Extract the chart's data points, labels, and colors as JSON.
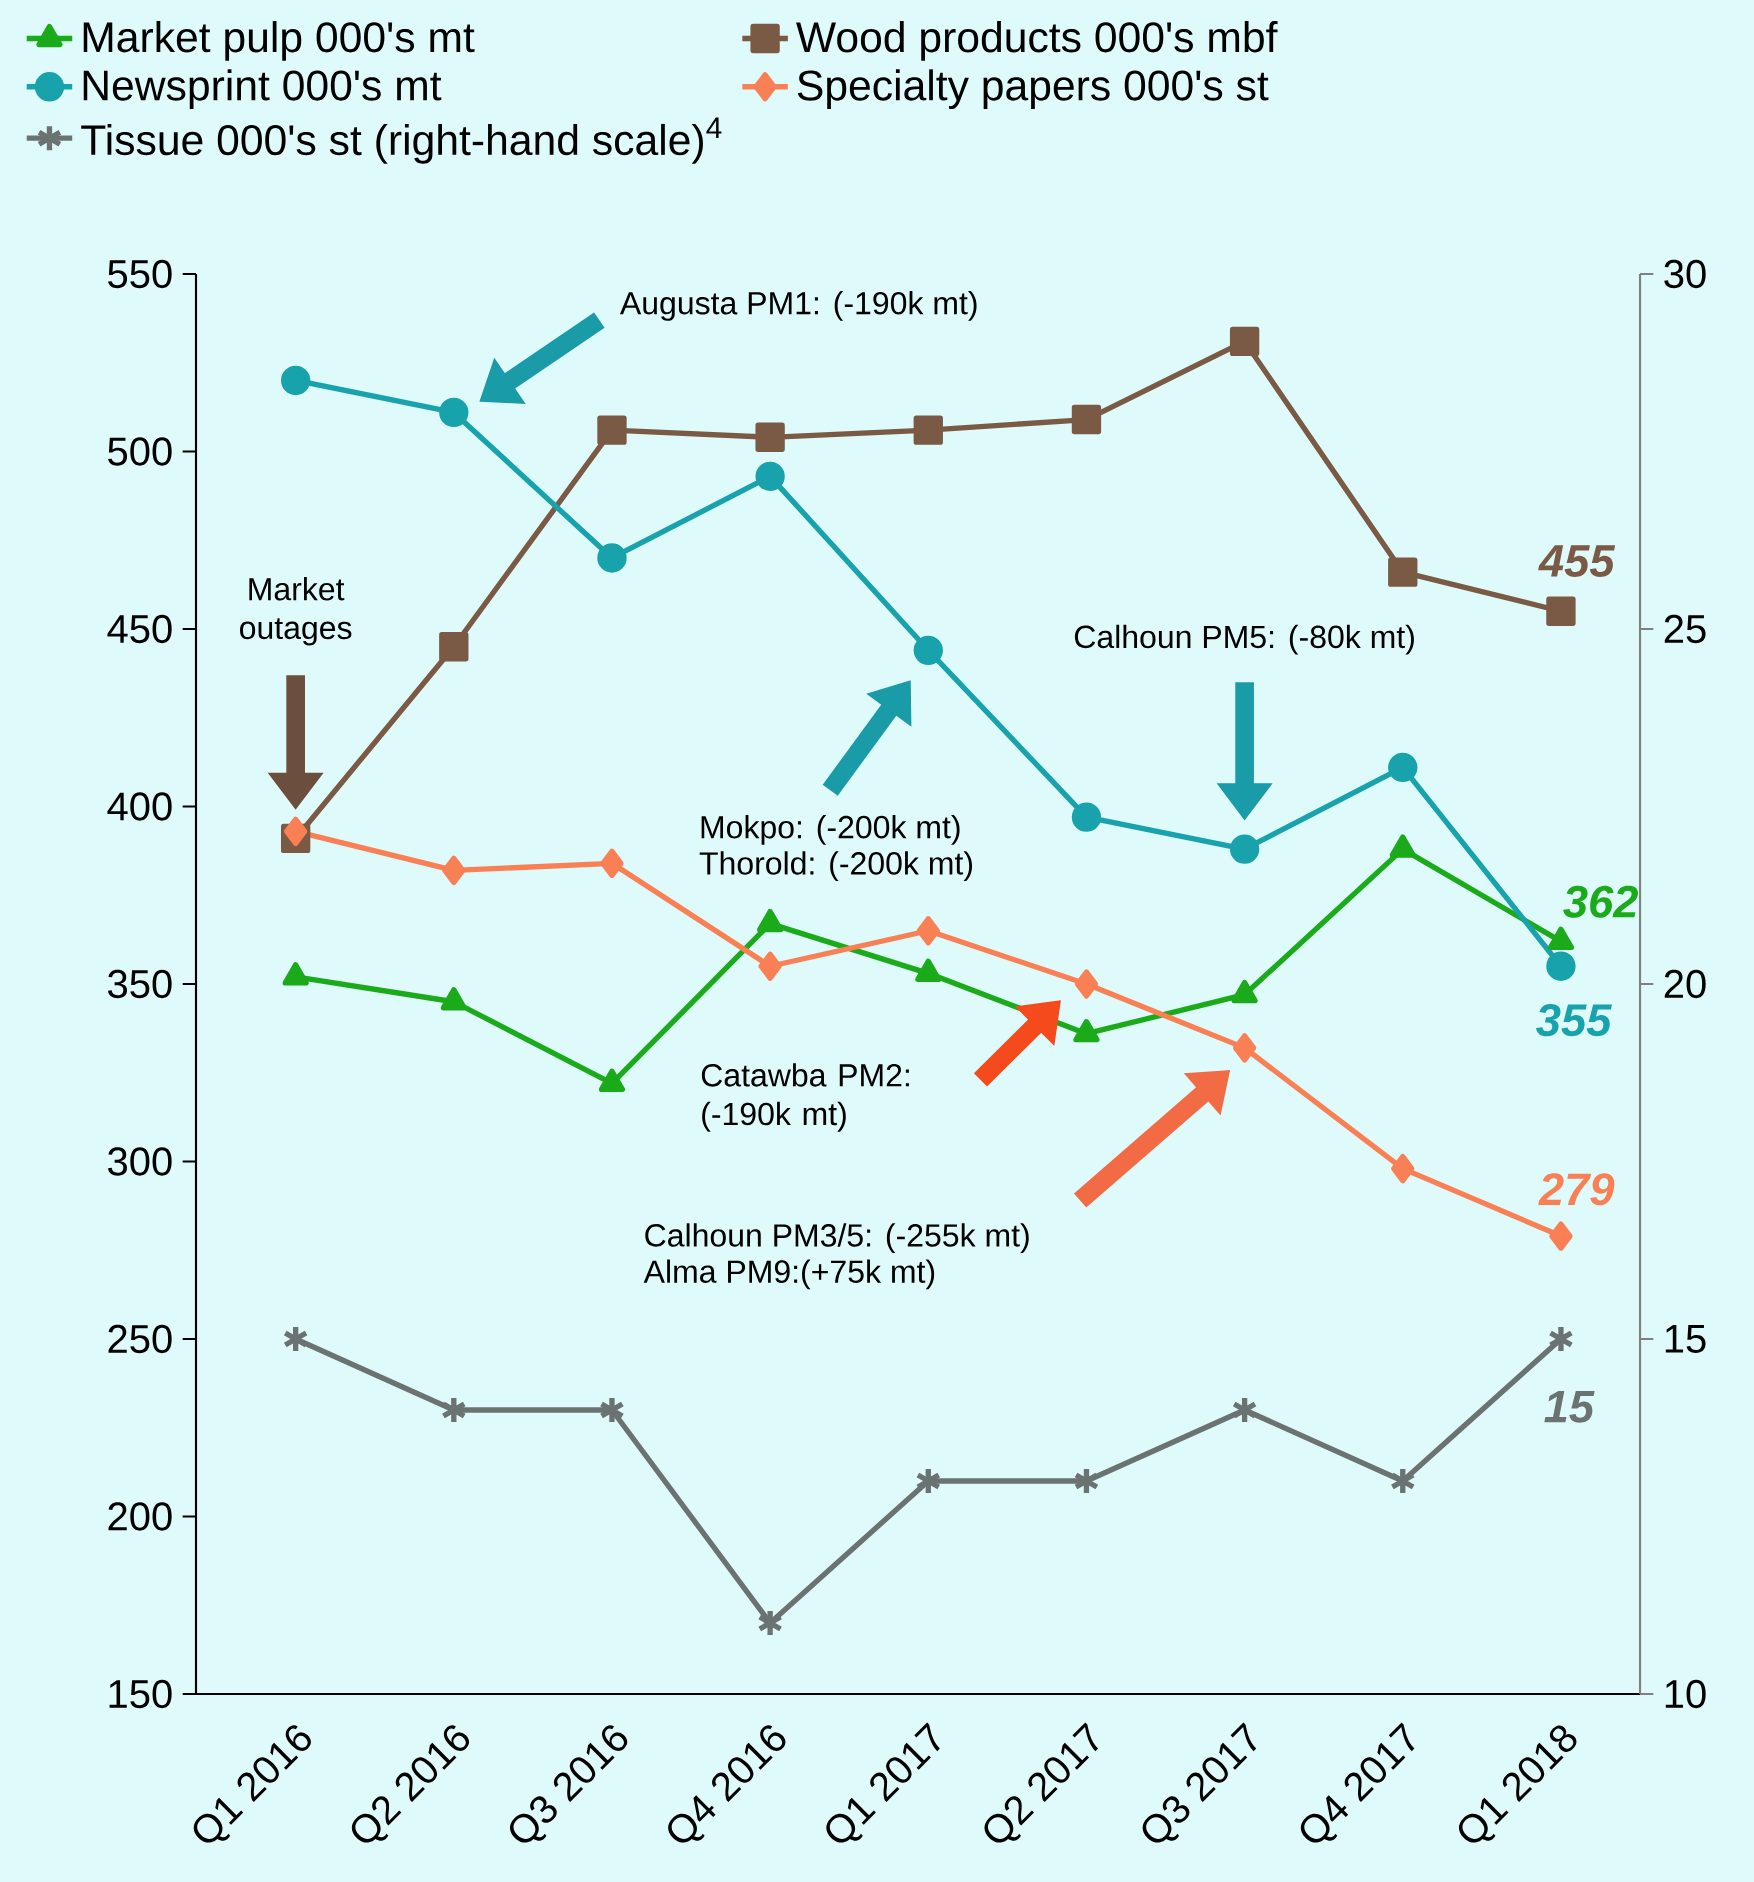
{
  "chart_data": {
    "type": "line",
    "categories": [
      "Q1 2016",
      "Q2 2016",
      "Q3 2016",
      "Q4 2016",
      "Q1 2017",
      "Q2 2017",
      "Q3 2017",
      "Q4 2017",
      "Q1 2018"
    ],
    "series": [
      {
        "name": "Market pulp 000's mt",
        "color": "#1aaa1a",
        "marker": "triangle",
        "values": [
          352,
          345,
          322,
          367,
          353,
          336,
          347,
          388,
          362
        ],
        "value_labels": [
          null,
          null,
          null,
          null,
          null,
          null,
          null,
          null,
          "362"
        ]
      },
      {
        "name": "Wood products 000's mbf",
        "color": "#7a5a44",
        "marker": "square",
        "values": [
          391,
          445,
          506,
          504,
          506,
          509,
          531,
          466,
          455
        ],
        "value_labels": [
          null,
          null,
          null,
          null,
          null,
          null,
          null,
          null,
          "455"
        ]
      },
      {
        "name": "Newsprint 000's mt",
        "color": "#18a2ac",
        "marker": "circle",
        "values": [
          520,
          511,
          470,
          493,
          444,
          397,
          388,
          411,
          355
        ],
        "value_labels": [
          null,
          null,
          null,
          null,
          null,
          null,
          null,
          null,
          "355"
        ]
      },
      {
        "name": "Specialty papers 000's st",
        "color": "#f98055",
        "marker": "diamond",
        "values": [
          393,
          382,
          384,
          355,
          365,
          350,
          332,
          298,
          279
        ],
        "value_labels": [
          null,
          null,
          null,
          null,
          null,
          null,
          null,
          null,
          "279"
        ]
      },
      {
        "name": "Tissue 000's st (right-hand scale)$^{4}$",
        "color": "#6b7372",
        "marker": "cross",
        "axis": "y2",
        "values": [
          15,
          14,
          14,
          11,
          13,
          13,
          14,
          13,
          15
        ],
        "value_labels": [
          null,
          null,
          null,
          null,
          null,
          null,
          null,
          null,
          "15"
        ]
      }
    ],
    "ylim": [
      150,
      550
    ],
    "yticks": [
      150,
      200,
      250,
      300,
      350,
      400,
      450,
      500,
      550
    ],
    "y2lim": [
      10,
      30
    ],
    "y2ticks": [
      10,
      15,
      20,
      25,
      30
    ],
    "grid": false,
    "legend": "top",
    "annotations": [
      "Augusta PM1: (-190k mt)",
      "Market outages",
      "Calhoun PM5: (-80k mt)",
      "Mokpo: (-200k mt)",
      "Thorold: (-200k mt)",
      "Catawba PM2: (-190k mt)",
      "Calhoun PM3/5: (-255k mt)",
      "Alma PM9:(+75k mt)"
    ]
  }
}
